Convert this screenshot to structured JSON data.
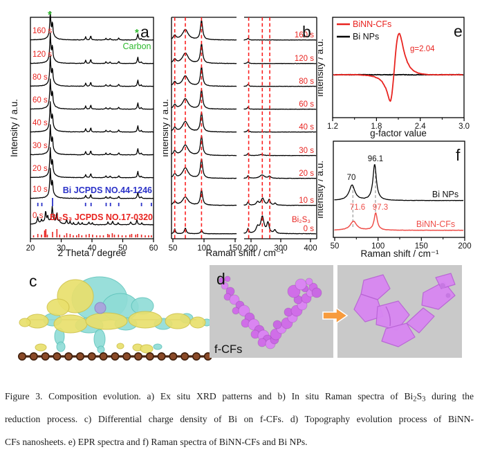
{
  "panel_a": {
    "letter": "a",
    "ylabel": "Intensity / a.u.",
    "xlabel": "2 Theta / degree",
    "carbon_label": "Carbon",
    "carbon_marker": "*",
    "bi_ref_label": "Bi JCPDS NO.44-1246",
    "bi2s3_ref_label": "Bi₂S₃ JCPDS NO.17-0320",
    "times": [
      "160 s",
      "120 s",
      "80 s",
      "60 s",
      "40 s",
      "30 s",
      "20 s",
      "10 s",
      "0 s"
    ]
  },
  "panel_b": {
    "letter": "b",
    "ylabel": "Intensity / a.u.",
    "xlabel": "Raman shift / cm⁻¹",
    "bi2s3_label": "Bi₂S₃",
    "times": [
      "160 s",
      "120 s",
      "80 s",
      "60 s",
      "40 s",
      "30 s",
      "20 s",
      "10 s",
      "0 s"
    ]
  },
  "panel_e": {
    "letter": "e",
    "ylabel": "Intensity / a.u.",
    "xlabel": "g-factor value",
    "legend": [
      {
        "name": "BiNN-CFs",
        "color": "#e8231f"
      },
      {
        "name": "Bi NPs",
        "color": "#000000"
      }
    ],
    "annotation": "g=2.04"
  },
  "panel_f": {
    "letter": "f",
    "ylabel": "Intensity / a.u.",
    "xlabel": "Raman shift / cm⁻¹",
    "series": [
      {
        "name": "Bi NPs",
        "color": "#000000",
        "peak_labels": [
          "70",
          "96.1"
        ]
      },
      {
        "name": "BiNN-CFs",
        "color": "#ef4f4a",
        "peak_labels": [
          "71.6",
          "97.3"
        ]
      }
    ]
  },
  "panel_c": {
    "letter": "c"
  },
  "panel_d": {
    "letter": "d",
    "label": "f-CFs"
  },
  "caption": {
    "lines": [
      [
        {
          "t": "Figure 3. Composition evolution. a) Ex situ XRD patterns and b) In situ Raman spectra of Bi"
        },
        {
          "t": "2",
          "sub": true
        },
        {
          "t": "S"
        },
        {
          "t": "3",
          "sub": true
        },
        {
          "t": " during the"
        }
      ],
      [
        {
          "t": "reduction process. c) Differential charge density of Bi on f-CFs. d) Topography evolution process of BiNN-"
        }
      ],
      [
        {
          "t": "CFs nanosheets. e) EPR spectra and f) Raman spectra of BiNN-CFs and Bi NPs."
        }
      ]
    ]
  },
  "colors": {
    "red_label": "#e8231f",
    "red_dash": "#fb1f1f",
    "light_red_trace": "#ef4f4a",
    "green_carbon": "#2db92d",
    "blue_ref": "#2b32c8",
    "gray_box": "#c9c9c9",
    "purple_spheres": "#d06ee8",
    "purple_sheets": "#d886f2",
    "orange_arrow": "#f79b3d",
    "blob_yellow": "#e9e06d",
    "blob_cyan": "#8fdcd6",
    "atom_brown": "#8a4a28",
    "lavender": "#a9a6dc"
  },
  "chart_data": [
    {
      "id": "xrd_ex_situ",
      "type": "line",
      "panel": "a",
      "title": "Ex situ XRD patterns",
      "xlabel": "2 Theta / degree",
      "ylabel": "Intensity / a.u.",
      "xlim": [
        20,
        60
      ],
      "xticks": [
        20,
        30,
        40,
        50,
        60
      ],
      "series": [
        "160 s",
        "120 s",
        "80 s",
        "60 s",
        "40 s",
        "30 s",
        "20 s",
        "10 s",
        "0 s"
      ],
      "bi_carbon_peaks_2theta": [
        [
          26.45,
          36,
          0.2
        ],
        [
          27.15,
          18,
          0.16
        ],
        [
          26.9,
          8,
          1.1
        ],
        [
          37.95,
          4.5,
          0.18
        ],
        [
          39.6,
          6,
          0.18
        ],
        [
          44.55,
          2.5,
          0.18
        ],
        [
          45.9,
          2.2,
          0.18
        ],
        [
          48.7,
          3,
          0.18
        ],
        [
          54.9,
          9,
          0.2
        ],
        [
          56.0,
          2,
          0.18
        ]
      ],
      "bi2s3_peaks_2theta": [
        [
          22.35,
          9,
          0.18
        ],
        [
          23.6,
          4,
          0.15
        ],
        [
          24.95,
          16,
          0.18
        ],
        [
          25.6,
          8,
          0.15
        ],
        [
          27.1,
          22,
          0.22
        ],
        [
          28.6,
          14,
          0.2
        ],
        [
          29.4,
          4,
          0.15
        ],
        [
          31.75,
          7,
          0.18
        ],
        [
          32.9,
          5,
          0.15
        ],
        [
          34.0,
          3,
          0.15
        ],
        [
          35.6,
          4,
          0.15
        ],
        [
          36.8,
          3,
          0.15
        ],
        [
          39.0,
          4,
          0.2
        ],
        [
          40.1,
          3,
          0.15
        ],
        [
          45.2,
          4,
          0.2
        ],
        [
          46.7,
          5,
          0.2
        ],
        [
          48.5,
          3,
          0.15
        ],
        [
          52.6,
          4,
          0.2
        ],
        [
          54.6,
          7,
          0.2
        ],
        [
          56.2,
          3,
          0.15
        ]
      ],
      "carbon_marks_2theta": [
        26.45,
        54.9
      ],
      "bi_ref_ticks": [
        22.4,
        23.7,
        27.2,
        37.9,
        39.7,
        44.6,
        46.0,
        48.7,
        56.1,
        59.3
      ],
      "bi_ref_tall": 27.2,
      "bi2s3_ref_ticks": [
        [
          21,
          3
        ],
        [
          22.4,
          5
        ],
        [
          23.6,
          4
        ],
        [
          24.6,
          10
        ],
        [
          25,
          12
        ],
        [
          25.5,
          4
        ],
        [
          27.2,
          8
        ],
        [
          28.6,
          12
        ],
        [
          29.5,
          4
        ],
        [
          31,
          3
        ],
        [
          31.8,
          6
        ],
        [
          32.9,
          5
        ],
        [
          33.9,
          3
        ],
        [
          35,
          3
        ],
        [
          35.7,
          5
        ],
        [
          36.7,
          3
        ],
        [
          38.1,
          4
        ],
        [
          39.1,
          5
        ],
        [
          40.2,
          4
        ],
        [
          41.5,
          3
        ],
        [
          42.6,
          3
        ],
        [
          43.7,
          3
        ],
        [
          45.1,
          5
        ],
        [
          45.6,
          4
        ],
        [
          46.6,
          6
        ],
        [
          47.3,
          4
        ],
        [
          48.6,
          4
        ],
        [
          49.8,
          3
        ],
        [
          51,
          3
        ],
        [
          52.3,
          4
        ],
        [
          52.9,
          5
        ],
        [
          54.2,
          4
        ],
        [
          54.8,
          5
        ],
        [
          56.1,
          4
        ],
        [
          57.3,
          3
        ],
        [
          58.4,
          3
        ],
        [
          59.3,
          3
        ]
      ]
    },
    {
      "id": "raman_in_situ",
      "type": "line",
      "panel": "b",
      "title": "In situ Raman spectra",
      "xlabel": "Raman shift / cm⁻¹",
      "ylabel": "Intensity / a.u.",
      "axis_break": [
        150,
        165
      ],
      "xticks_left": [
        50,
        100,
        150
      ],
      "xticks_right": [
        200,
        300,
        400
      ],
      "series": [
        "160 s",
        "120 s",
        "80 s",
        "60 s",
        "40 s",
        "30 s",
        "20 s",
        "10 s",
        "0 s"
      ],
      "dashed_lines_left_cm": [
        53,
        70,
        96
      ],
      "dashed_lines_right_cm": [
        192,
        238,
        263
      ],
      "left_peaks": {
        "default": [
          [
            53,
            6,
            2.5
          ],
          [
            70,
            15,
            5.5
          ],
          [
            96,
            28,
            2.1
          ]
        ],
        "t10": [
          [
            53,
            5,
            2.5
          ],
          [
            70,
            12,
            5.5
          ],
          [
            96,
            22,
            2.1
          ]
        ],
        "t0": [
          [
            53,
            7,
            1.3
          ],
          [
            70,
            8,
            1.8
          ],
          [
            96,
            5,
            1.8
          ]
        ]
      },
      "right_peaks": [
        [
          [
            190,
            2.5,
            3
          ]
        ],
        [
          [
            190,
            2.5,
            3
          ]
        ],
        [
          [
            190,
            3,
            3
          ]
        ],
        [
          [
            190,
            3,
            3
          ]
        ],
        [
          [
            190,
            3,
            3
          ]
        ],
        [
          [
            190,
            3,
            3
          ],
          [
            235,
            1.5,
            8
          ]
        ],
        [
          [
            190,
            4,
            3
          ],
          [
            237,
            5,
            9
          ],
          [
            262,
            3,
            5
          ]
        ],
        [
          [
            190,
            5,
            3
          ],
          [
            222,
            5,
            5
          ],
          [
            239,
            10,
            6
          ],
          [
            261,
            8,
            4
          ],
          [
            281,
            3,
            4
          ]
        ],
        [
          [
            190,
            7,
            3
          ],
          [
            222,
            9,
            6
          ],
          [
            238,
            24,
            6.5
          ],
          [
            257,
            15,
            4.5
          ],
          [
            280,
            5,
            4
          ]
        ]
      ]
    },
    {
      "id": "epr",
      "type": "line",
      "panel": "e",
      "title": "EPR spectra",
      "xlabel": "g-factor value",
      "ylabel": "Intensity / a.u.",
      "xlim": [
        1.2,
        3.0
      ],
      "xticks": [
        1.2,
        1.8,
        2.4,
        3.0
      ],
      "g_annotation": 2.04,
      "series": [
        {
          "name": "BiNN-CFs",
          "color": "#e8231f",
          "curve": [
            [
              1.2,
              0
            ],
            [
              1.55,
              0
            ],
            [
              1.68,
              -1
            ],
            [
              1.76,
              -2.5
            ],
            [
              1.82,
              -5
            ],
            [
              1.87,
              -9
            ],
            [
              1.9,
              -14
            ],
            [
              1.93,
              -20
            ],
            [
              1.955,
              -28
            ],
            [
              1.972,
              -35
            ],
            [
              1.988,
              -38.5
            ],
            [
              2.0,
              -36
            ],
            [
              2.012,
              -28
            ],
            [
              2.025,
              -15
            ],
            [
              2.04,
              2
            ],
            [
              2.055,
              22
            ],
            [
              2.07,
              40
            ],
            [
              2.085,
              52
            ],
            [
              2.1,
              58.5
            ],
            [
              2.115,
              60
            ],
            [
              2.13,
              56
            ],
            [
              2.148,
              48
            ],
            [
              2.17,
              37
            ],
            [
              2.195,
              27
            ],
            [
              2.225,
              18
            ],
            [
              2.26,
              11
            ],
            [
              2.31,
              5.5
            ],
            [
              2.37,
              2.5
            ],
            [
              2.44,
              1
            ],
            [
              2.52,
              0
            ],
            [
              3.0,
              0
            ]
          ]
        },
        {
          "name": "Bi NPs",
          "color": "#000000",
          "curve": "flat"
        }
      ]
    },
    {
      "id": "raman_compare",
      "type": "line",
      "panel": "f",
      "title": "Raman spectra of BiNN-CFs and Bi NPs",
      "xlabel": "Raman shift / cm⁻¹",
      "ylabel": "Intensity / a.u.",
      "xlim": [
        50,
        200
      ],
      "xticks": [
        50,
        100,
        150,
        200
      ],
      "series": [
        {
          "name": "Bi NPs",
          "peaks_cm": [
            [
              70,
              22,
              4
            ],
            [
              96.1,
              52,
              2.4
            ]
          ]
        },
        {
          "name": "BiNN-CFs",
          "peaks_cm": [
            [
              71.6,
              13,
              4.5
            ],
            [
              97.3,
              25,
              2.2
            ]
          ]
        }
      ],
      "dashed_marks_cm": [
        71,
        97
      ]
    }
  ]
}
